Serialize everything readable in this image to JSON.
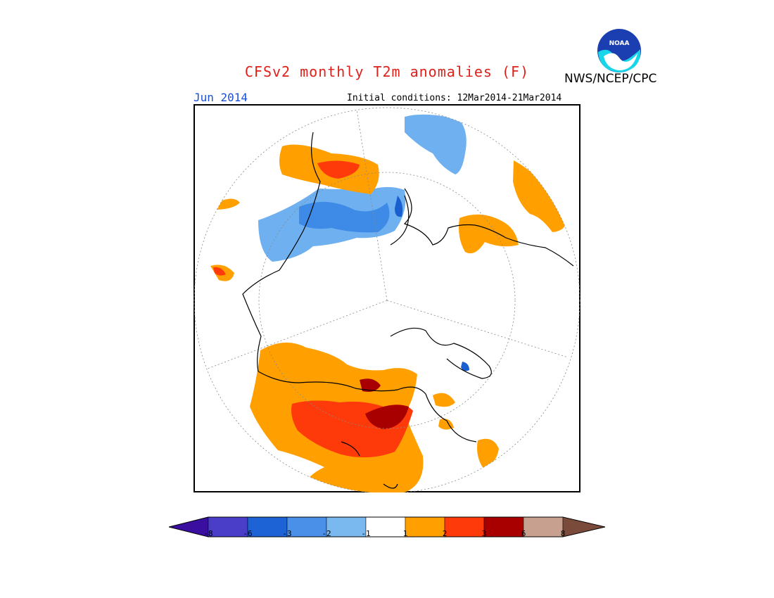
{
  "header": {
    "title": "CFSv2 monthly T2m anomalies (F)",
    "month": "Jun 2014",
    "initial_conditions": "Initial conditions: 12Mar2014-21Mar2014",
    "org": "NWS/NCEP/CPC",
    "logo_text": "NOAA"
  },
  "colorbar": {
    "labels": [
      "-8",
      "-6",
      "-3",
      "-2",
      "-1",
      "1",
      "2",
      "3",
      "6",
      "8"
    ],
    "colors": [
      "#3a0fa0",
      "#4a3ec8",
      "#1e63d6",
      "#4a90e8",
      "#7ab8f0",
      "#ffffff",
      "#ffa000",
      "#ff3a0a",
      "#a80000",
      "#c8a090",
      "#7a4a3a"
    ]
  },
  "colors": {
    "neg2": "#6fb0f0",
    "neg3": "#3d8be6",
    "neg6": "#1a5fcf",
    "pos1": "#ffa000",
    "pos2": "#ff3a0a",
    "pos3": "#a80000"
  }
}
